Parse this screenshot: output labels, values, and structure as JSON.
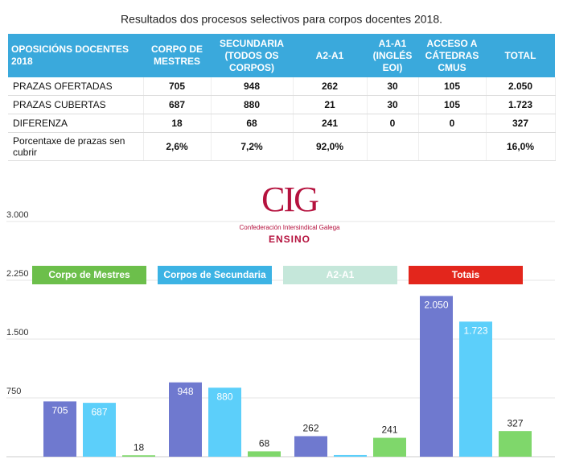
{
  "title": "Resultados dos procesos selectivos para corpos docentes 2018.",
  "table": {
    "header": [
      "OPOSICIÓNS DOCENTES 2018",
      "CORPO DE MESTRES",
      "SECUNDARIA (TODOS OS CORPOS)",
      "A2-A1",
      "A1-A1 (INGLÉS EOI)",
      "ACCESO A CÁTEDRAS CMUS",
      "TOTAL"
    ],
    "rows": [
      [
        "PRAZAS OFERTADAS",
        "705",
        "948",
        "262",
        "30",
        "105",
        "2.050"
      ],
      [
        "PRAZAS CUBERTAS",
        "687",
        "880",
        "21",
        "30",
        "105",
        "1.723"
      ],
      [
        "DIFERENZA",
        "18",
        "68",
        "241",
        "0",
        "0",
        "327"
      ],
      [
        "Porcentaxe de prazas sen cubrir",
        "2,6%",
        "7,2%",
        "92,0%",
        null,
        null,
        "16,0%"
      ]
    ]
  },
  "logo": {
    "mark": "CIG",
    "name": "Confederación Intersindical Galega",
    "section": "ENSINO"
  },
  "chart_data": {
    "type": "bar",
    "categories": [
      "Corpo de Mestres",
      "Corpos de Secundaria",
      "A2-A1",
      "Totais"
    ],
    "category_colors": [
      "#6cbf4b",
      "#3cb3e4",
      "#c5e7da",
      "#e3261c"
    ],
    "series": [
      {
        "color": "#6f79cf",
        "values": [
          705,
          948,
          262,
          2050
        ],
        "value_labels": [
          "705",
          "948",
          "262",
          "2.050"
        ]
      },
      {
        "color": "#5ccffa",
        "values": [
          687,
          880,
          21,
          1723
        ],
        "value_labels": [
          "687",
          "880",
          null,
          "1.723"
        ]
      },
      {
        "color": "#7fd76b",
        "values": [
          18,
          68,
          241,
          327
        ]
      }
    ],
    "ylim": [
      0,
      3000
    ],
    "yticks": [
      750,
      {
        "value": 1500,
        "label": "1.500"
      },
      {
        "value": 2250,
        "label": "2.250"
      },
      {
        "value": 3000,
        "label": "3.000"
      }
    ],
    "grid": true
  }
}
